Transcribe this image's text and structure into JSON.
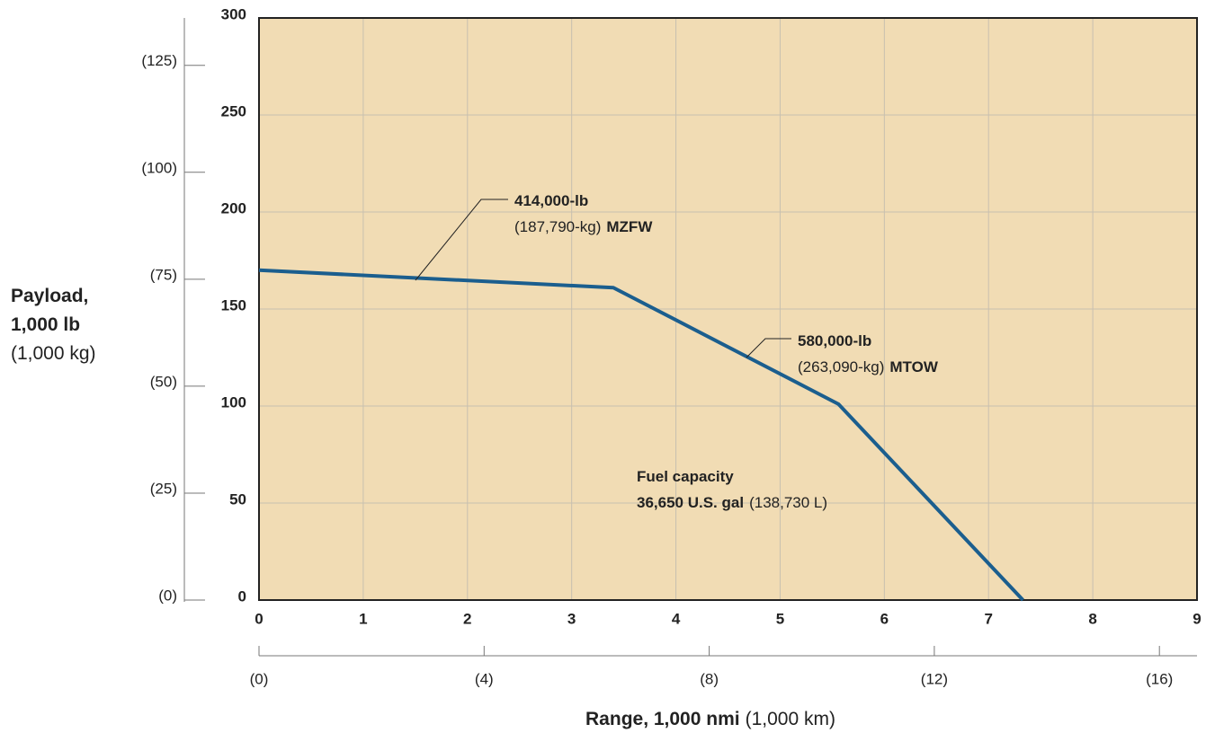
{
  "chart_data": {
    "type": "line",
    "xlabel": [
      {
        "text": "Range, 1,000 nmi",
        "bold": true
      },
      {
        "text": "(1,000 km)"
      }
    ],
    "ylabel": [
      [
        {
          "text": "Payload,",
          "bold": true
        }
      ],
      [
        {
          "text": "1,000 lb",
          "bold": true
        }
      ],
      [
        {
          "text": "(1,000 kg)"
        }
      ]
    ],
    "x": [
      0,
      3.4,
      5.56,
      7.33
    ],
    "series": [
      {
        "color": "#1b5e8e",
        "values": [
          170,
          161,
          101,
          0
        ]
      }
    ],
    "xlim": [
      0,
      9
    ],
    "xticks": [
      0,
      1,
      2,
      3,
      4,
      5,
      6,
      7,
      8,
      9
    ],
    "ylim": [
      0,
      300
    ],
    "yticks": [
      0,
      50,
      100,
      150,
      200,
      250,
      300
    ],
    "x2lim": [
      0,
      16.668
    ],
    "x2ticks": [
      {
        "value": 0,
        "label": "(0)"
      },
      {
        "value": 4,
        "label": "(4)"
      },
      {
        "value": 8,
        "label": "(8)"
      },
      {
        "value": 12,
        "label": "(12)"
      },
      {
        "value": 16,
        "label": "(16)"
      }
    ],
    "y2lim": [
      0,
      136.08
    ],
    "y2ticks": [
      {
        "value": 0,
        "label": "(0)"
      },
      {
        "value": 25,
        "label": "(25)"
      },
      {
        "value": 50,
        "label": "(50)"
      },
      {
        "value": 75,
        "label": "(75)"
      },
      {
        "value": 100,
        "label": "(100)"
      },
      {
        "value": 125,
        "label": "(125)"
      }
    ],
    "grid": true,
    "background": "#f1dcb4",
    "annotations": [
      {
        "lines": [
          [
            {
              "text": "414,000-lb",
              "bold": true
            }
          ],
          [
            {
              "text": "(187,790-kg)"
            },
            {
              "text": "MZFW",
              "bold": true
            }
          ]
        ]
      },
      {
        "lines": [
          [
            {
              "text": "580,000-lb",
              "bold": true
            }
          ],
          [
            {
              "text": "(263,090-kg)"
            },
            {
              "text": "MTOW",
              "bold": true
            }
          ]
        ]
      },
      {
        "lines": [
          [
            {
              "text": "Fuel capacity",
              "bold": true
            }
          ],
          [
            {
              "text": "36,650 U.S. gal",
              "bold": true
            },
            {
              "text": "(138,730 L)"
            }
          ]
        ]
      }
    ]
  }
}
